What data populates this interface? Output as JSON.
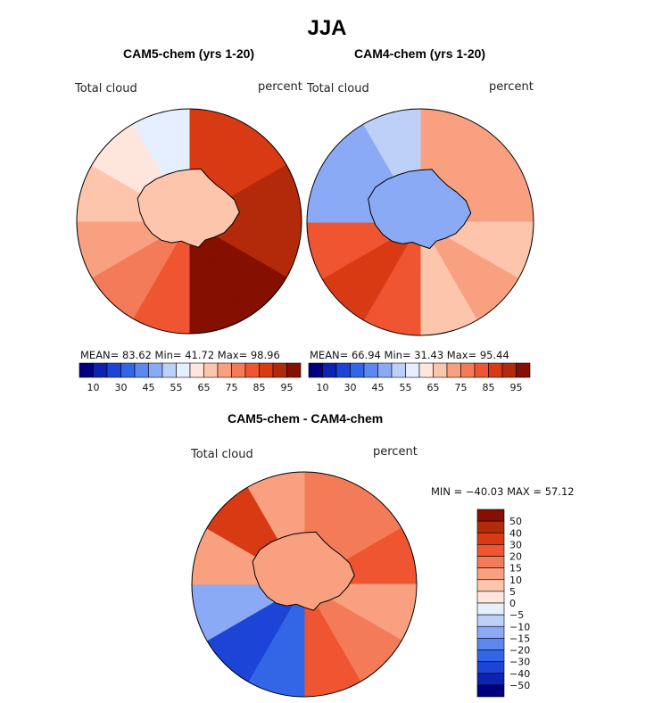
{
  "figure": {
    "title": "JJA"
  },
  "panels": {
    "cam5": {
      "title": "CAM5-chem (yrs 1-20)",
      "left_label": "Total cloud",
      "right_label": "percent",
      "stats": "MEAN=  83.62   Min=  41.72   Max=  98.96"
    },
    "cam4": {
      "title": "CAM4-chem (yrs 1-20)",
      "left_label": "Total cloud",
      "right_label": "percent",
      "stats": "MEAN=  66.94   Min=  31.43   Max=  95.44"
    },
    "diff": {
      "title": "CAM5-chem - CAM4-chem",
      "left_label": "Total cloud",
      "right_label": "percent",
      "stats": "MIN = −40.03 MAX =  57.12"
    }
  },
  "chart_data": [
    {
      "type": "heatmap",
      "projection": "south-polar-stereographic",
      "title": "CAM5-chem (yrs 1-20)",
      "variable": "Total cloud",
      "units": "percent",
      "mean": 83.62,
      "min": 41.72,
      "max": 98.96,
      "field_levels": [
        85,
        85,
        90,
        92,
        95,
        95,
        80,
        75,
        70,
        60,
        55,
        50
      ],
      "colorbar": {
        "orientation": "horizontal",
        "tick_labels": [
          "10",
          "30",
          "45",
          "55",
          "65",
          "75",
          "85",
          "95"
        ],
        "colors": [
          "#00007f",
          "#0e22b2",
          "#1c44d6",
          "#3366e6",
          "#5d88ef",
          "#8aaaf5",
          "#bdd0f8",
          "#e6efff",
          "#ffe6dc",
          "#fcc5ac",
          "#f8a080",
          "#f47b58",
          "#ee5530",
          "#d83a14",
          "#b22a0a",
          "#850f00"
        ]
      }
    },
    {
      "type": "heatmap",
      "projection": "south-polar-stereographic",
      "title": "CAM4-chem (yrs 1-20)",
      "variable": "Total cloud",
      "units": "percent",
      "mean": 66.94,
      "min": 31.43,
      "max": 95.44,
      "field_levels": [
        70,
        65,
        70,
        60,
        65,
        60,
        80,
        85,
        80,
        40,
        35,
        45
      ],
      "colorbar": {
        "orientation": "horizontal",
        "tick_labels": [
          "10",
          "30",
          "45",
          "55",
          "65",
          "75",
          "85",
          "95"
        ],
        "colors": [
          "#00007f",
          "#0e22b2",
          "#1c44d6",
          "#3366e6",
          "#5d88ef",
          "#8aaaf5",
          "#bdd0f8",
          "#e6efff",
          "#ffe6dc",
          "#fcc5ac",
          "#f8a080",
          "#f47b58",
          "#ee5530",
          "#d83a14",
          "#b22a0a",
          "#850f00"
        ]
      }
    },
    {
      "type": "heatmap",
      "projection": "south-polar-stereographic",
      "title": "CAM5-chem - CAM4-chem",
      "variable": "Total cloud",
      "units": "percent",
      "min": -40.03,
      "max": 57.12,
      "field_levels": [
        25,
        25,
        30,
        20,
        25,
        30,
        -30,
        -35,
        -20,
        15,
        40,
        20
      ],
      "colorbar": {
        "orientation": "vertical",
        "tick_labels": [
          "50",
          "40",
          "30",
          "20",
          "15",
          "10",
          "5",
          "0",
          "−5",
          "−10",
          "−15",
          "−20",
          "−30",
          "−40",
          "−50"
        ],
        "colors": [
          "#850f00",
          "#b22a0a",
          "#d83a14",
          "#ee5530",
          "#f47b58",
          "#f8a080",
          "#fcc5ac",
          "#ffe6dc",
          "#e6efff",
          "#bdd0f8",
          "#8aaaf5",
          "#5d88ef",
          "#3366e6",
          "#1c44d6",
          "#0e22b2",
          "#00007f"
        ]
      }
    }
  ]
}
